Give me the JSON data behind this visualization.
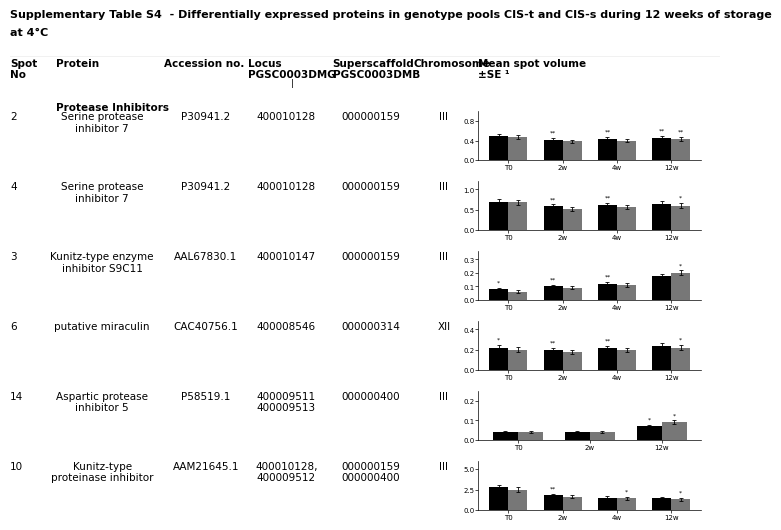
{
  "title_line1": "Supplementary Table S4  - Differentially expressed proteins in genotype pools CIS-t and CIS-s during 12 weeks of storage",
  "title_line2": "at 4°C",
  "section": "Protease Inhibitors",
  "rows": [
    {
      "spot": "2",
      "protein": "Serine protease\ninhibitor 7",
      "accession": "P30941.2",
      "locus": "400010128",
      "superscaffold": "000000159",
      "chromosome": "III",
      "ylim": [
        0.0,
        1.0
      ],
      "yticks": [
        0.0,
        0.4,
        0.8
      ],
      "ytick_labels": [
        "0.0",
        "0.4",
        "0.8"
      ],
      "timepoints": [
        "T0",
        "2w",
        "4w",
        "12w"
      ],
      "cist_vals": [
        0.5,
        0.42,
        0.44,
        0.46
      ],
      "cist_err": [
        0.04,
        0.04,
        0.04,
        0.04
      ],
      "ciss_vals": [
        0.48,
        0.38,
        0.4,
        0.44
      ],
      "ciss_err": [
        0.04,
        0.04,
        0.04,
        0.04
      ],
      "sig_cist": [
        "",
        "**",
        "**",
        "**"
      ],
      "sig_ciss": [
        "",
        "",
        "",
        "**"
      ]
    },
    {
      "spot": "4",
      "protein": "Serine protease\ninhibitor 7",
      "accession": "P30941.2",
      "locus": "400010128",
      "superscaffold": "000000159",
      "chromosome": "III",
      "ylim": [
        0.0,
        1.2
      ],
      "yticks": [
        0.0,
        0.5,
        1.0
      ],
      "ytick_labels": [
        "0.0",
        "0.5",
        "1.0"
      ],
      "timepoints": [
        "T0",
        "2w",
        "4w",
        "12w"
      ],
      "cist_vals": [
        0.7,
        0.58,
        0.62,
        0.65
      ],
      "cist_err": [
        0.06,
        0.05,
        0.05,
        0.06
      ],
      "ciss_vals": [
        0.68,
        0.52,
        0.56,
        0.6
      ],
      "ciss_err": [
        0.06,
        0.05,
        0.05,
        0.06
      ],
      "sig_cist": [
        "",
        "**",
        "**",
        ""
      ],
      "sig_ciss": [
        "",
        "",
        "",
        "*"
      ]
    },
    {
      "spot": "3",
      "protein": "Kunitz-type enzyme\ninhibitor S9C11",
      "accession": "AAL67830.1",
      "locus": "400010147",
      "superscaffold": "000000159",
      "chromosome": "III",
      "ylim": [
        0.0,
        0.36
      ],
      "yticks": [
        0.0,
        0.1,
        0.2,
        0.3
      ],
      "ytick_labels": [
        "0.0",
        "0.1",
        "0.2",
        "0.3"
      ],
      "timepoints": [
        "T0",
        "2w",
        "4w",
        "12w"
      ],
      "cist_vals": [
        0.08,
        0.1,
        0.12,
        0.18
      ],
      "cist_err": [
        0.01,
        0.012,
        0.012,
        0.015
      ],
      "ciss_vals": [
        0.06,
        0.09,
        0.11,
        0.2
      ],
      "ciss_err": [
        0.01,
        0.012,
        0.012,
        0.018
      ],
      "sig_cist": [
        "*",
        "**",
        "**",
        ""
      ],
      "sig_ciss": [
        "",
        "",
        "",
        "*"
      ]
    },
    {
      "spot": "6",
      "protein": "putative miraculin",
      "accession": "CAC40756.1",
      "locus": "400008546",
      "superscaffold": "000000314",
      "chromosome": "XII",
      "ylim": [
        0.0,
        0.48
      ],
      "yticks": [
        0.0,
        0.2,
        0.4
      ],
      "ytick_labels": [
        "0.0",
        "0.2",
        "0.4"
      ],
      "timepoints": [
        "T0",
        "2w",
        "4w",
        "12w"
      ],
      "cist_vals": [
        0.22,
        0.2,
        0.22,
        0.24
      ],
      "cist_err": [
        0.025,
        0.02,
        0.02,
        0.025
      ],
      "ciss_vals": [
        0.2,
        0.18,
        0.2,
        0.22
      ],
      "ciss_err": [
        0.025,
        0.02,
        0.02,
        0.025
      ],
      "sig_cist": [
        "*",
        "**",
        "**",
        ""
      ],
      "sig_ciss": [
        "",
        "",
        "",
        "*"
      ]
    },
    {
      "spot": "14",
      "protein": "Aspartic protease\ninhibitor 5",
      "accession": "P58519.1",
      "locus": "400009511\n400009513",
      "superscaffold": "000000400",
      "chromosome": "III",
      "ylim": [
        0.0,
        0.25
      ],
      "yticks": [
        0.0,
        0.1,
        0.2
      ],
      "ytick_labels": [
        "0.0",
        "0.1",
        "0.2"
      ],
      "timepoints": [
        "T0",
        "2w",
        "12w"
      ],
      "cist_vals": [
        0.04,
        0.04,
        0.07
      ],
      "cist_err": [
        0.005,
        0.005,
        0.008
      ],
      "ciss_vals": [
        0.04,
        0.04,
        0.09
      ],
      "ciss_err": [
        0.005,
        0.005,
        0.01
      ],
      "sig_cist": [
        "",
        "",
        "*"
      ],
      "sig_ciss": [
        "",
        "",
        "*"
      ]
    },
    {
      "spot": "10",
      "protein": "Kunitz-type\nproteinase inhibitor",
      "accession": "AAM21645.1",
      "locus": "400010128,\n400009512",
      "superscaffold": "000000159\n000000400",
      "chromosome": "III",
      "ylim": [
        0.0,
        6.0
      ],
      "yticks": [
        0.0,
        2.5,
        5.0
      ],
      "ytick_labels": [
        "0.0",
        "2.5",
        "5.0"
      ],
      "timepoints": [
        "T0",
        "2w",
        "4w",
        "12w"
      ],
      "cist_vals": [
        2.8,
        1.8,
        1.5,
        1.4
      ],
      "cist_err": [
        0.3,
        0.2,
        0.18,
        0.18
      ],
      "ciss_vals": [
        2.5,
        1.6,
        1.4,
        1.3
      ],
      "ciss_err": [
        0.28,
        0.18,
        0.16,
        0.16
      ],
      "sig_cist": [
        "",
        "**",
        "",
        ""
      ],
      "sig_ciss": [
        "",
        "",
        "*",
        "*"
      ]
    }
  ],
  "bar_color_cist": "#000000",
  "bar_color_ciss": "#777777",
  "background": "#ffffff",
  "text_color": "#000000"
}
